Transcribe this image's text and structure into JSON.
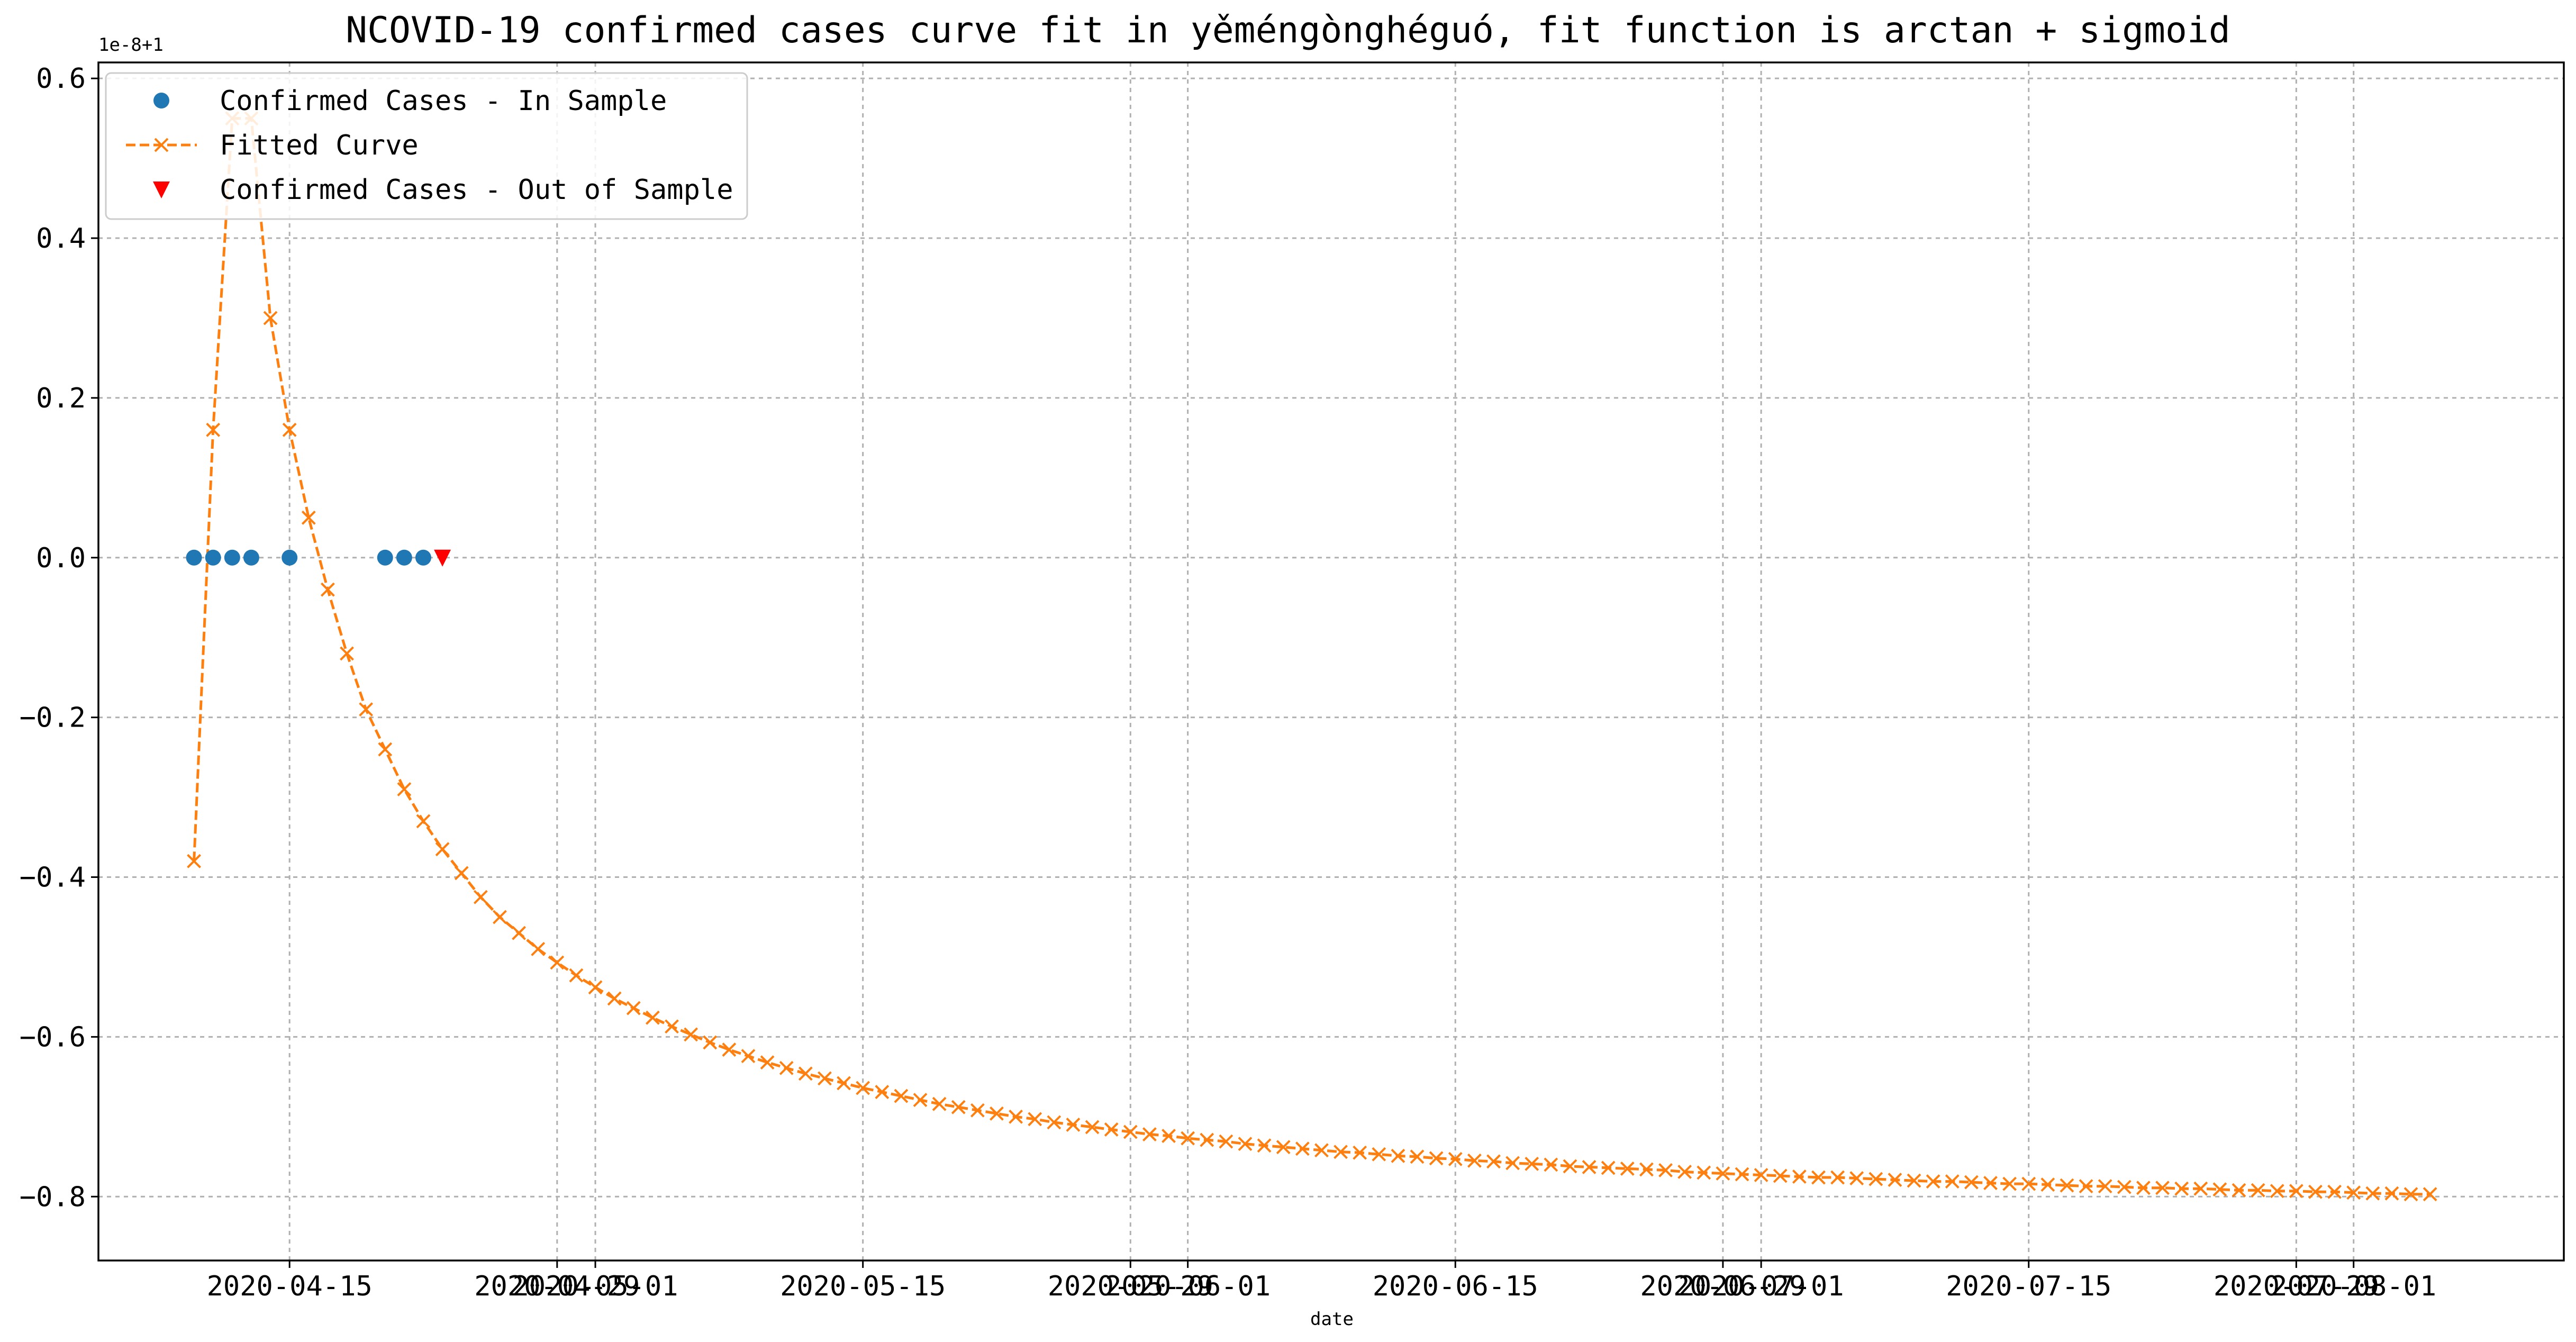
{
  "chart_data": {
    "type": "line",
    "title": "NCOVID-19 confirmed cases curve fit in yěméngònghéguó, fit function is arctan + sigmoid",
    "xlabel": "date",
    "ylabel": "",
    "y_offset_text": "1e-8+1",
    "ylim": [
      -0.88,
      0.62
    ],
    "xlim": [
      "2020-04-05",
      "2020-08-12"
    ],
    "grid": true,
    "legend_position": "top-left",
    "x_ticks": [
      {
        "date": "2020-04-15",
        "label": "2020-04-15"
      },
      {
        "date": "2020-04-29",
        "label": "2020-04-29"
      },
      {
        "date": "2020-05-01",
        "label": "2020-05-01"
      },
      {
        "date": "2020-05-15",
        "label": "2020-05-15"
      },
      {
        "date": "2020-05-29",
        "label": "2020-05-29"
      },
      {
        "date": "2020-06-01",
        "label": "2020-06-01"
      },
      {
        "date": "2020-06-15",
        "label": "2020-06-15"
      },
      {
        "date": "2020-06-29",
        "label": "2020-06-29"
      },
      {
        "date": "2020-07-01",
        "label": "2020-07-01"
      },
      {
        "date": "2020-07-15",
        "label": "2020-07-15"
      },
      {
        "date": "2020-07-29",
        "label": "2020-07-29"
      },
      {
        "date": "2020-08-01",
        "label": "2020-08-01"
      }
    ],
    "y_ticks": [
      {
        "value": 0.6,
        "label": "0.6"
      },
      {
        "value": 0.4,
        "label": "0.4"
      },
      {
        "value": 0.2,
        "label": "0.2"
      },
      {
        "value": 0.0,
        "label": "0.0"
      },
      {
        "value": -0.2,
        "label": "−0.2"
      },
      {
        "value": -0.4,
        "label": "−0.4"
      },
      {
        "value": -0.6,
        "label": "−0.6"
      },
      {
        "value": -0.8,
        "label": "−0.8"
      }
    ],
    "series": [
      {
        "name": "Confirmed Cases - In Sample",
        "style": "dot",
        "color": "#1f77b4",
        "points": [
          {
            "x": "2020-04-10",
            "y": 0.0
          },
          {
            "x": "2020-04-11",
            "y": 0.0
          },
          {
            "x": "2020-04-12",
            "y": 0.0
          },
          {
            "x": "2020-04-13",
            "y": 0.0
          },
          {
            "x": "2020-04-15",
            "y": 0.0
          },
          {
            "x": "2020-04-20",
            "y": 0.0
          },
          {
            "x": "2020-04-21",
            "y": 0.0
          },
          {
            "x": "2020-04-22",
            "y": 0.0
          }
        ]
      },
      {
        "name": "Fitted Curve",
        "style": "dashed-x",
        "color": "#ff7f0e",
        "x_start": "2020-04-10",
        "x_step_days": 1,
        "values": [
          -0.38,
          0.16,
          0.55,
          0.55,
          0.3,
          0.16,
          0.05,
          -0.04,
          -0.12,
          -0.19,
          -0.24,
          -0.29,
          -0.33,
          -0.365,
          -0.395,
          -0.425,
          -0.45,
          -0.47,
          -0.49,
          -0.507,
          -0.523,
          -0.538,
          -0.552,
          -0.564,
          -0.576,
          -0.587,
          -0.597,
          -0.607,
          -0.616,
          -0.624,
          -0.632,
          -0.639,
          -0.646,
          -0.652,
          -0.658,
          -0.664,
          -0.669,
          -0.674,
          -0.679,
          -0.684,
          -0.688,
          -0.692,
          -0.696,
          -0.7,
          -0.703,
          -0.707,
          -0.71,
          -0.713,
          -0.716,
          -0.719,
          -0.722,
          -0.724,
          -0.727,
          -0.729,
          -0.731,
          -0.734,
          -0.736,
          -0.738,
          -0.74,
          -0.742,
          -0.744,
          -0.745,
          -0.747,
          -0.749,
          -0.75,
          -0.752,
          -0.753,
          -0.755,
          -0.756,
          -0.758,
          -0.759,
          -0.76,
          -0.762,
          -0.763,
          -0.764,
          -0.765,
          -0.766,
          -0.767,
          -0.769,
          -0.77,
          -0.771,
          -0.772,
          -0.773,
          -0.774,
          -0.775,
          -0.776,
          -0.776,
          -0.777,
          -0.778,
          -0.779,
          -0.78,
          -0.781,
          -0.781,
          -0.782,
          -0.783,
          -0.784,
          -0.784,
          -0.785,
          -0.786,
          -0.787,
          -0.787,
          -0.788,
          -0.789,
          -0.789,
          -0.79,
          -0.79,
          -0.791,
          -0.792,
          -0.792,
          -0.793,
          -0.793,
          -0.794,
          -0.794,
          -0.795,
          -0.796,
          -0.796,
          -0.797,
          -0.797
        ]
      },
      {
        "name": "Confirmed Cases - Out of Sample",
        "style": "triangle-down",
        "color": "#ff0000",
        "points": [
          {
            "x": "2020-04-23",
            "y": 0.0
          }
        ]
      }
    ]
  }
}
